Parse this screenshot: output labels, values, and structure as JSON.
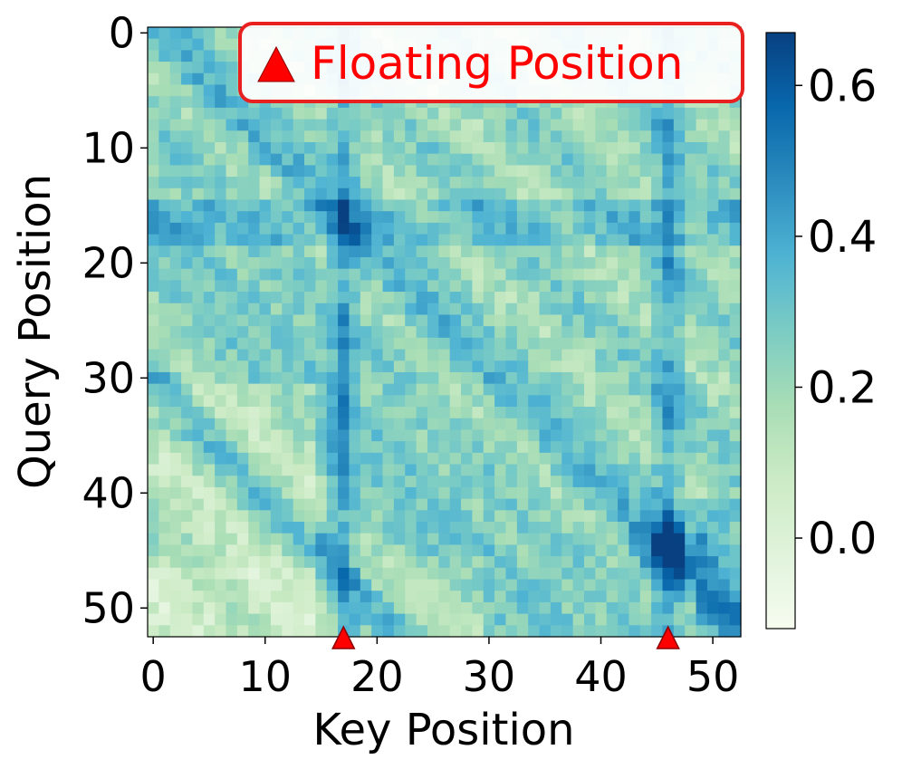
{
  "chart_data": {
    "type": "heatmap",
    "title": "",
    "xlabel": "Key Position",
    "ylabel": "Query Position",
    "size": 53,
    "x_ticks": [
      0,
      10,
      20,
      30,
      40,
      50
    ],
    "y_ticks": [
      0,
      10,
      20,
      30,
      40,
      50
    ],
    "colorbar": {
      "vmin": -0.12,
      "vmax": 0.67,
      "ticks": [
        0.0,
        0.2,
        0.4,
        0.6
      ],
      "tick_labels": [
        "0.0",
        "0.2",
        "0.4",
        "0.6"
      ],
      "colormap": "GnBu"
    },
    "markers": {
      "label": "Floating Position",
      "symbol": "triangle",
      "color": "#ff0000",
      "key_positions": [
        17,
        46
      ]
    },
    "legend": {
      "position": "top-right",
      "entries": [
        "Floating Position"
      ]
    },
    "grid": false,
    "description_of_values": "Attention score per (query, key) cell; stronger along diagonal bands and along key columns 17 and 46; approximate values.",
    "values_generation": {
      "base": 0.22,
      "diagonal_bands": [
        0,
        -15,
        -30
      ],
      "diagonal_strength": 0.14,
      "strong_columns": [
        17,
        46
      ],
      "column_strength": 0.17,
      "row_band": [
        15,
        18
      ],
      "row_band_strength": 0.1,
      "hotspot": {
        "q": 45,
        "k": 46,
        "strength": 0.25
      }
    }
  },
  "colors": {
    "marker_fill": "#ff0000",
    "marker_stroke": "#8b0000",
    "legend_border": "#e8201f",
    "legend_text": "#ff0000"
  }
}
